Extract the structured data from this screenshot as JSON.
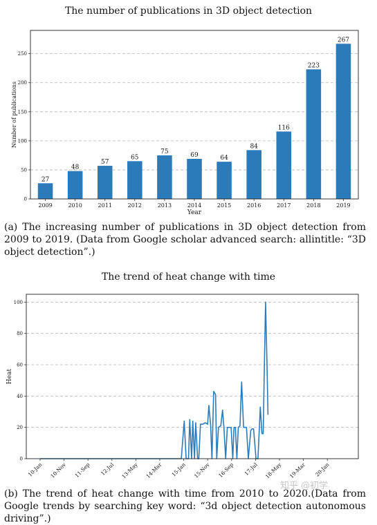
{
  "chart_data": [
    {
      "type": "bar",
      "title": "The number of publications in 3D object detection",
      "xlabel": "Year",
      "ylabel": "Number of publications",
      "categories": [
        "2009",
        "2010",
        "2011",
        "2012",
        "2013",
        "2014",
        "2015",
        "2016",
        "2017",
        "2018",
        "2019"
      ],
      "values": [
        27,
        48,
        57,
        65,
        75,
        69,
        64,
        84,
        116,
        223,
        267
      ],
      "ylim": [
        0,
        290
      ],
      "yticks": [
        0,
        50,
        100,
        150,
        200,
        250
      ],
      "grid": "horizontal dashed",
      "bar_color": "#2b7bba",
      "data_labels": true
    },
    {
      "type": "line",
      "title": "The trend of heat change with time",
      "xlabel": "",
      "ylabel": "Heat",
      "xticks": [
        "10-Jan",
        "10-Nov",
        "11-Sep",
        "12-Jul",
        "13-May",
        "14-Mar",
        "15-Jan",
        "15-Nov",
        "16-Sep",
        "17-Jul",
        "18-May",
        "19-Mar",
        "20-Jan"
      ],
      "ylim": [
        0,
        105
      ],
      "yticks": [
        0,
        20,
        40,
        60,
        80,
        100
      ],
      "grid": "horizontal dashed",
      "line_color": "#2b7bba",
      "x": [
        0,
        5.9,
        6.02,
        6.1,
        6.2,
        6.25,
        6.33,
        6.38,
        6.45,
        6.5,
        6.58,
        6.63,
        6.7,
        6.8,
        6.9,
        7.0,
        7.05,
        7.12,
        7.18,
        7.25,
        7.33,
        7.38,
        7.45,
        7.55,
        7.62,
        7.68,
        7.75,
        7.82,
        7.9,
        7.98,
        8.05,
        8.1,
        8.16,
        8.22,
        8.28,
        8.35,
        8.42,
        8.5,
        8.58,
        8.62,
        8.7,
        8.8,
        8.85,
        8.92,
        9.02,
        9.1,
        9.2,
        9.27,
        9.32,
        9.37,
        9.42,
        9.48,
        9.52
      ],
      "y": [
        0,
        0,
        24,
        0,
        0,
        25,
        0,
        24,
        0,
        23,
        0,
        0,
        22,
        22,
        23,
        22,
        34,
        22,
        0,
        43,
        41,
        0,
        20,
        21,
        31,
        20,
        0,
        20,
        20,
        20,
        0,
        20,
        20,
        0,
        20,
        21,
        49,
        20,
        20,
        20,
        0,
        18,
        19,
        19,
        0,
        0,
        33,
        16,
        16,
        60,
        100,
        60,
        28
      ]
    }
  ],
  "captions": {
    "a": "(a) The increasing number of publications in 3D object detection from 2009 to 2019. (Data from Google scholar advanced search: allintitle: “3D object detection”.)",
    "b": "(b) The trend of heat change with time from 2010 to 2020.(Data from Google trends by searching key word: “3d object detection autonomous driving”.)"
  },
  "watermark": "知乎 @初学"
}
